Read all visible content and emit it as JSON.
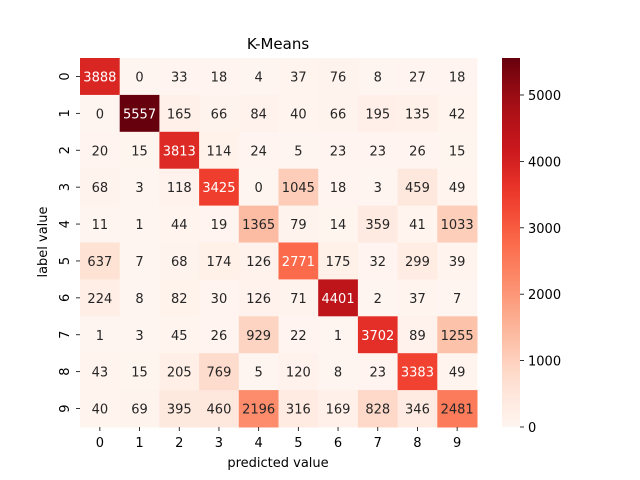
{
  "chart_data": {
    "type": "heatmap",
    "title": "K-Means",
    "xlabel": "predicted value",
    "ylabel": "label value",
    "x_categories": [
      "0",
      "1",
      "2",
      "3",
      "4",
      "5",
      "6",
      "7",
      "8",
      "9"
    ],
    "y_categories": [
      "0",
      "1",
      "2",
      "3",
      "4",
      "5",
      "6",
      "7",
      "8",
      "9"
    ],
    "values": [
      [
        3888,
        0,
        33,
        18,
        4,
        37,
        76,
        8,
        27,
        18
      ],
      [
        0,
        5557,
        165,
        66,
        84,
        40,
        66,
        195,
        135,
        42
      ],
      [
        20,
        15,
        3813,
        114,
        24,
        5,
        23,
        23,
        26,
        15
      ],
      [
        68,
        3,
        118,
        3425,
        0,
        1045,
        18,
        3,
        459,
        49
      ],
      [
        11,
        1,
        44,
        19,
        1365,
        79,
        14,
        359,
        41,
        1033
      ],
      [
        637,
        7,
        68,
        174,
        126,
        2771,
        175,
        32,
        299,
        39
      ],
      [
        224,
        8,
        82,
        30,
        126,
        71,
        4401,
        2,
        37,
        7
      ],
      [
        1,
        3,
        45,
        26,
        929,
        22,
        1,
        3702,
        89,
        1255
      ],
      [
        43,
        15,
        205,
        769,
        5,
        120,
        8,
        23,
        3383,
        49
      ],
      [
        40,
        69,
        395,
        460,
        2196,
        316,
        169,
        828,
        346,
        2481
      ]
    ],
    "colorbar": {
      "colormap": "Reds",
      "vmin": 0,
      "vmax": 5557,
      "ticks": [
        0,
        1000,
        2000,
        3000,
        4000,
        5000
      ]
    }
  }
}
